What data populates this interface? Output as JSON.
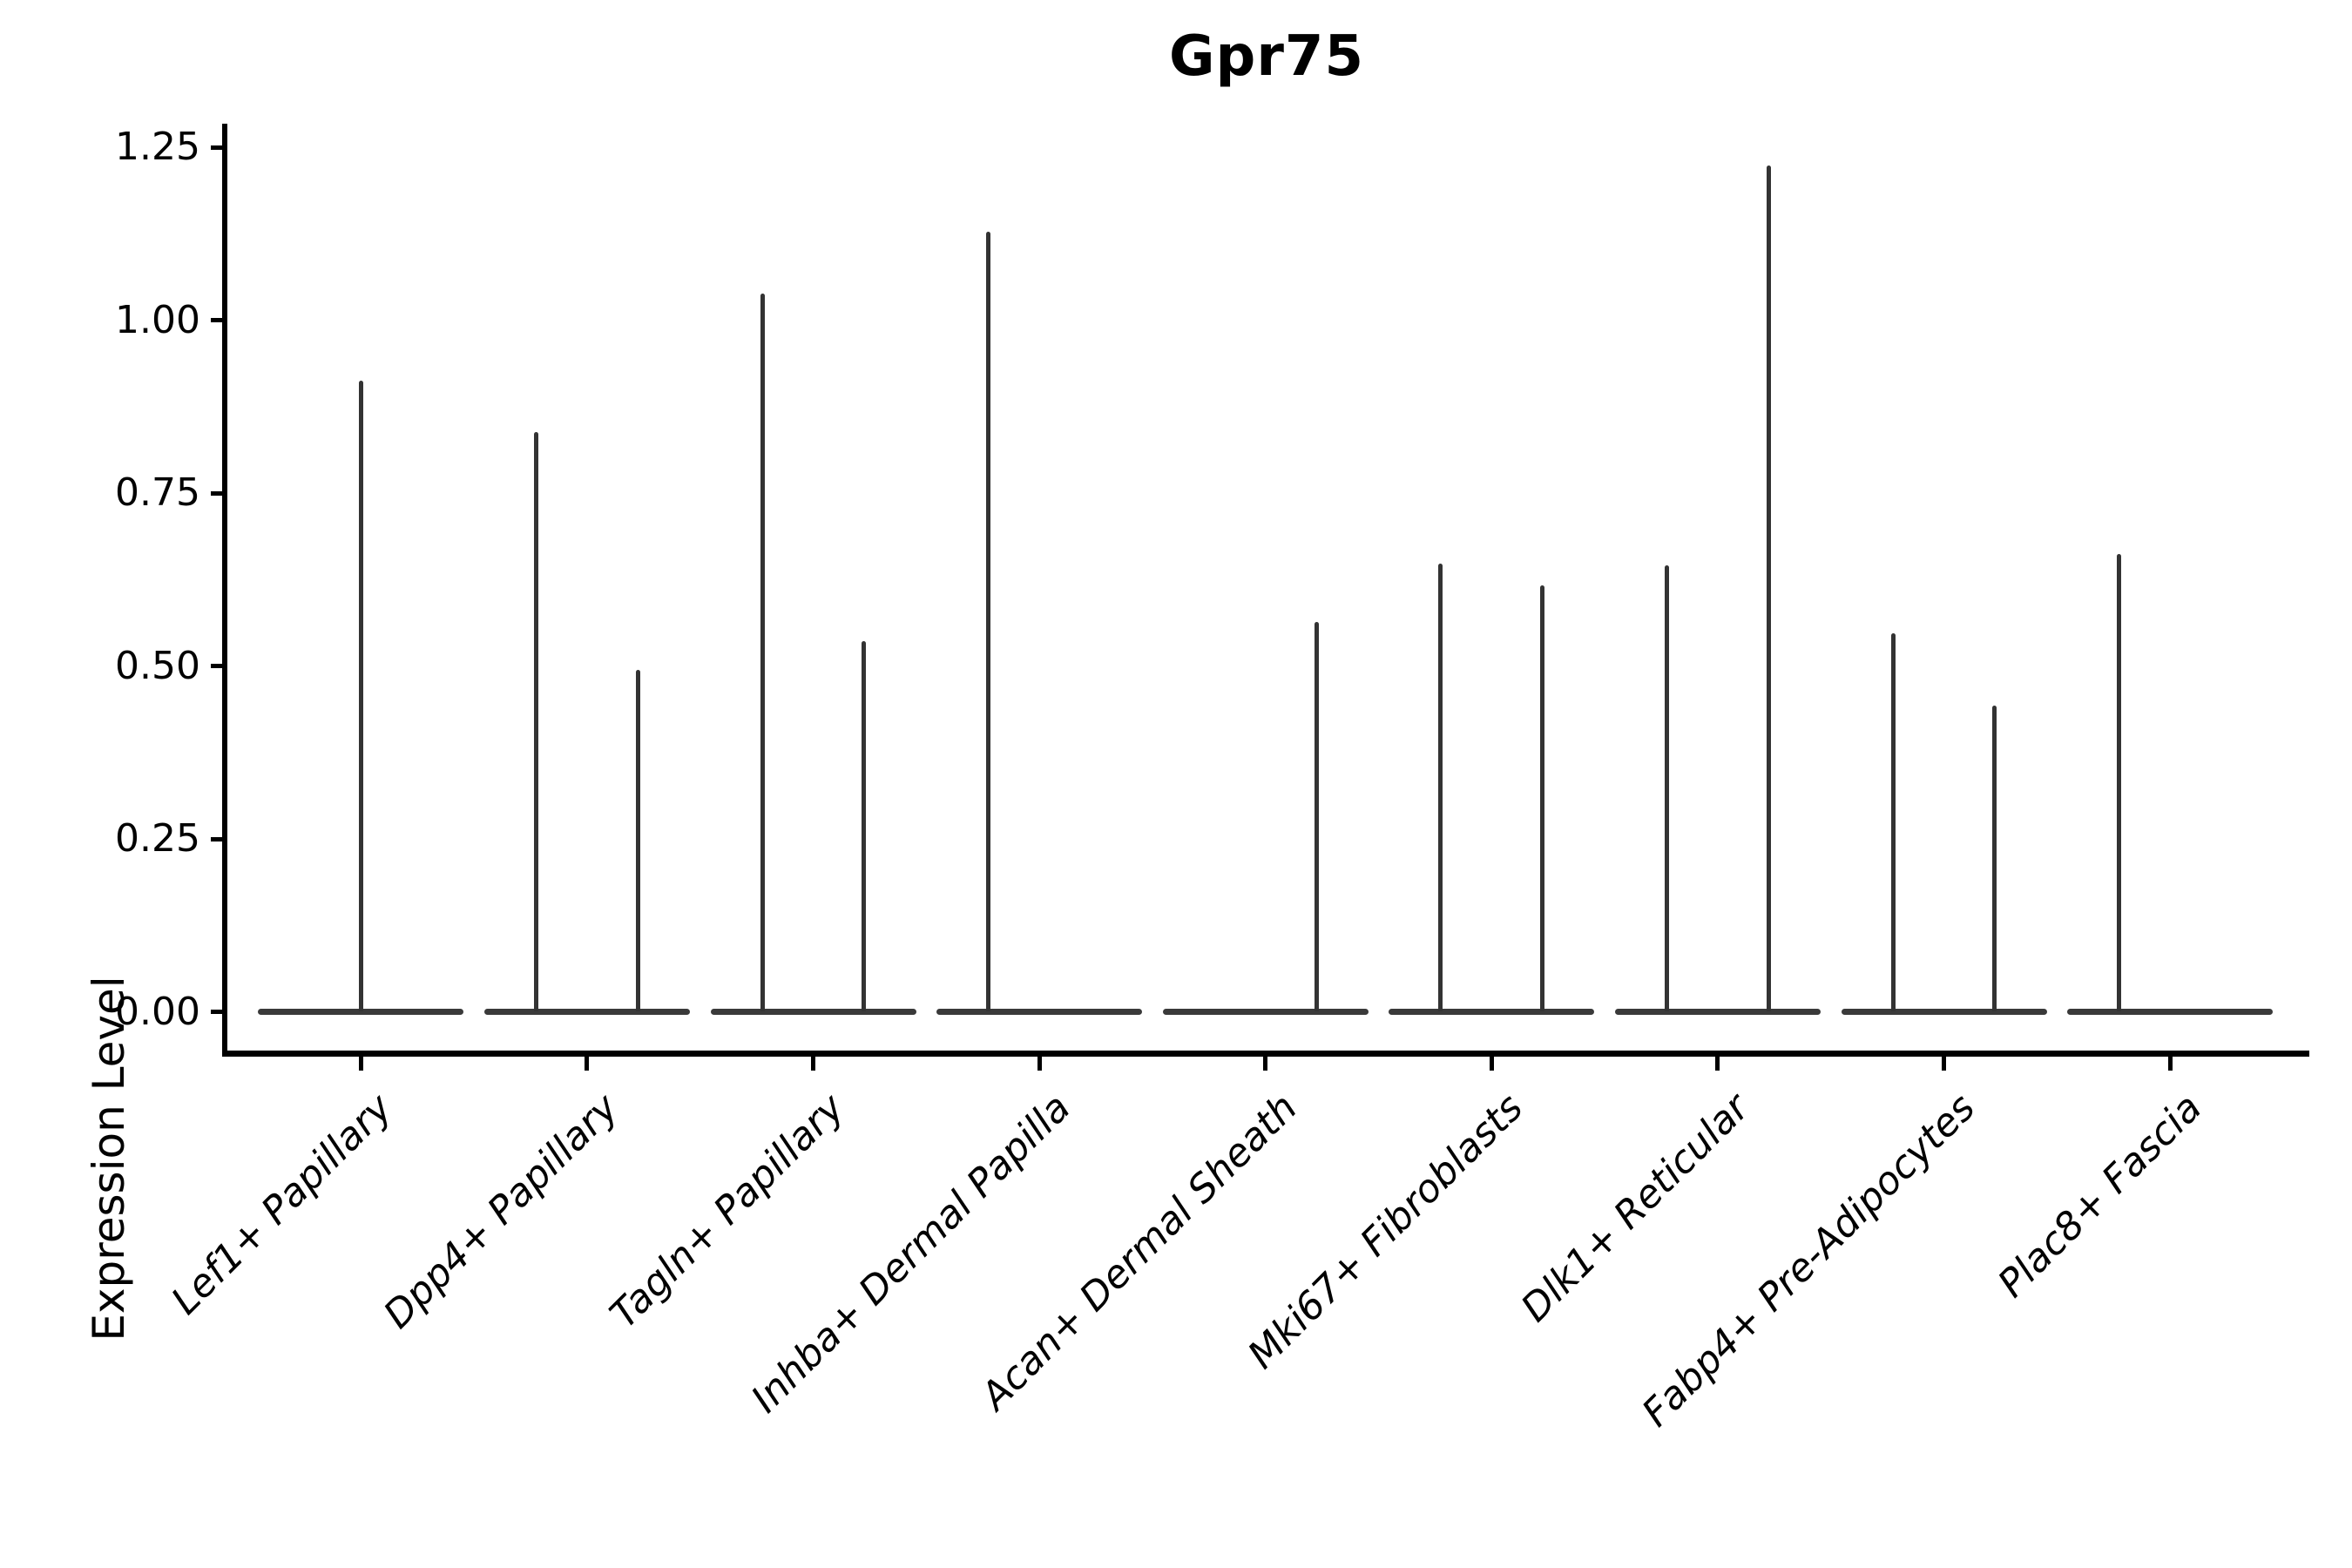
{
  "title": "Gpr75",
  "y_axis": {
    "label": "Expression Level",
    "tick_labels": [
      "0.00",
      "0.25",
      "0.50",
      "0.75",
      "1.00",
      "1.25"
    ]
  },
  "x_axis": {
    "categories": [
      "Lef1+ Papillary",
      "Dpp4+ Papillary",
      "Tagln+ Papillary",
      "Inhba+ Dermal Papilla",
      "Acan+ Dermal Sheath",
      "Mki67+ Fibroblasts",
      "Dlk1+ Reticular",
      "Fabp4+ Pre-Adipocytes",
      "Plac8+ Fascia"
    ]
  },
  "colors": {
    "spine": "#000000",
    "violin_base": "#3a3a3a",
    "violin_spike": "#333333",
    "text": "#000000",
    "background": "#ffffff"
  },
  "chart_data": {
    "type": "violin",
    "title": "Gpr75",
    "xlabel": "",
    "ylabel": "Expression Level",
    "ylim": [
      0,
      1.28
    ],
    "y_ticks": [
      0.0,
      0.25,
      0.5,
      0.75,
      1.0,
      1.25
    ],
    "grid": false,
    "legend": "none",
    "description": "Single-cell expression violin plot; each cluster shows a wide flat violin at 0 (most cells zero) with narrow spikes rising to the maximum expression of dodged sub-violins.",
    "base_width_category_units": 0.9,
    "categories": [
      "Lef1+ Papillary",
      "Dpp4+ Papillary",
      "Tagln+ Papillary",
      "Inhba+ Dermal Papilla",
      "Acan+ Dermal Sheath",
      "Mki67+ Fibroblasts",
      "Dlk1+ Reticular",
      "Fabp4+ Pre-Adipocytes",
      "Plac8+ Fascia"
    ],
    "violins": [
      {
        "category": "Lef1+ Papillary",
        "spikes": [
          {
            "offset": 0.0,
            "max": 0.913
          }
        ]
      },
      {
        "category": "Dpp4+ Papillary",
        "spikes": [
          {
            "offset": -0.225,
            "max": 0.838
          },
          {
            "offset": 0.225,
            "max": 0.494
          }
        ]
      },
      {
        "category": "Tagln+ Papillary",
        "spikes": [
          {
            "offset": -0.225,
            "max": 1.039
          },
          {
            "offset": 0.225,
            "max": 0.536
          }
        ]
      },
      {
        "category": "Inhba+ Dermal Papilla",
        "spikes": [
          {
            "offset": -0.225,
            "max": 1.128
          }
        ]
      },
      {
        "category": "Acan+ Dermal Sheath",
        "spikes": [
          {
            "offset": 0.225,
            "max": 0.563
          }
        ]
      },
      {
        "category": "Mki67+ Fibroblasts",
        "spikes": [
          {
            "offset": -0.225,
            "max": 0.648
          },
          {
            "offset": 0.225,
            "max": 0.617
          }
        ]
      },
      {
        "category": "Dlk1+ Reticular",
        "spikes": [
          {
            "offset": -0.225,
            "max": 0.646
          },
          {
            "offset": 0.225,
            "max": 1.224
          }
        ]
      },
      {
        "category": "Fabp4+ Pre-Adipocytes",
        "spikes": [
          {
            "offset": -0.225,
            "max": 0.547
          },
          {
            "offset": 0.225,
            "max": 0.443
          }
        ]
      },
      {
        "category": "Plac8+ Fascia",
        "spikes": [
          {
            "offset": -0.225,
            "max": 0.662
          }
        ]
      }
    ]
  }
}
